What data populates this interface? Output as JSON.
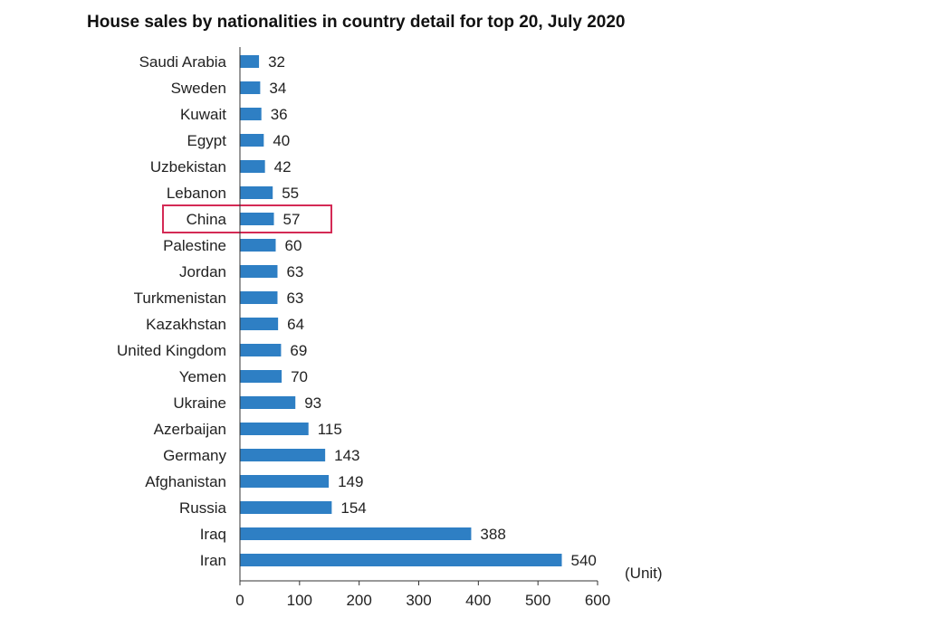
{
  "chart_data": {
    "type": "bar",
    "orientation": "horizontal",
    "title": "House sales by nationalities in country detail for top 20, July 2020",
    "unit_label": "(Unit)",
    "categories": [
      "Saudi Arabia",
      "Sweden",
      "Kuwait",
      "Egypt",
      "Uzbekistan",
      "Lebanon",
      "China",
      "Palestine",
      "Jordan",
      "Turkmenistan",
      "Kazakhstan",
      "United Kingdom",
      "Yemen",
      "Ukraine",
      "Azerbaijan",
      "Germany",
      "Afghanistan",
      "Russia",
      "Iraq",
      "Iran"
    ],
    "values": [
      32,
      34,
      36,
      40,
      42,
      55,
      57,
      60,
      63,
      63,
      64,
      69,
      70,
      93,
      115,
      143,
      149,
      154,
      388,
      540
    ],
    "xlim": [
      0,
      600
    ],
    "xticks": [
      0,
      100,
      200,
      300,
      400,
      500,
      600
    ],
    "grid": false,
    "highlight": "China",
    "colors": {
      "bar": "#2e7fc4",
      "highlight_box": "#d42a55",
      "axis": "#333333"
    }
  }
}
